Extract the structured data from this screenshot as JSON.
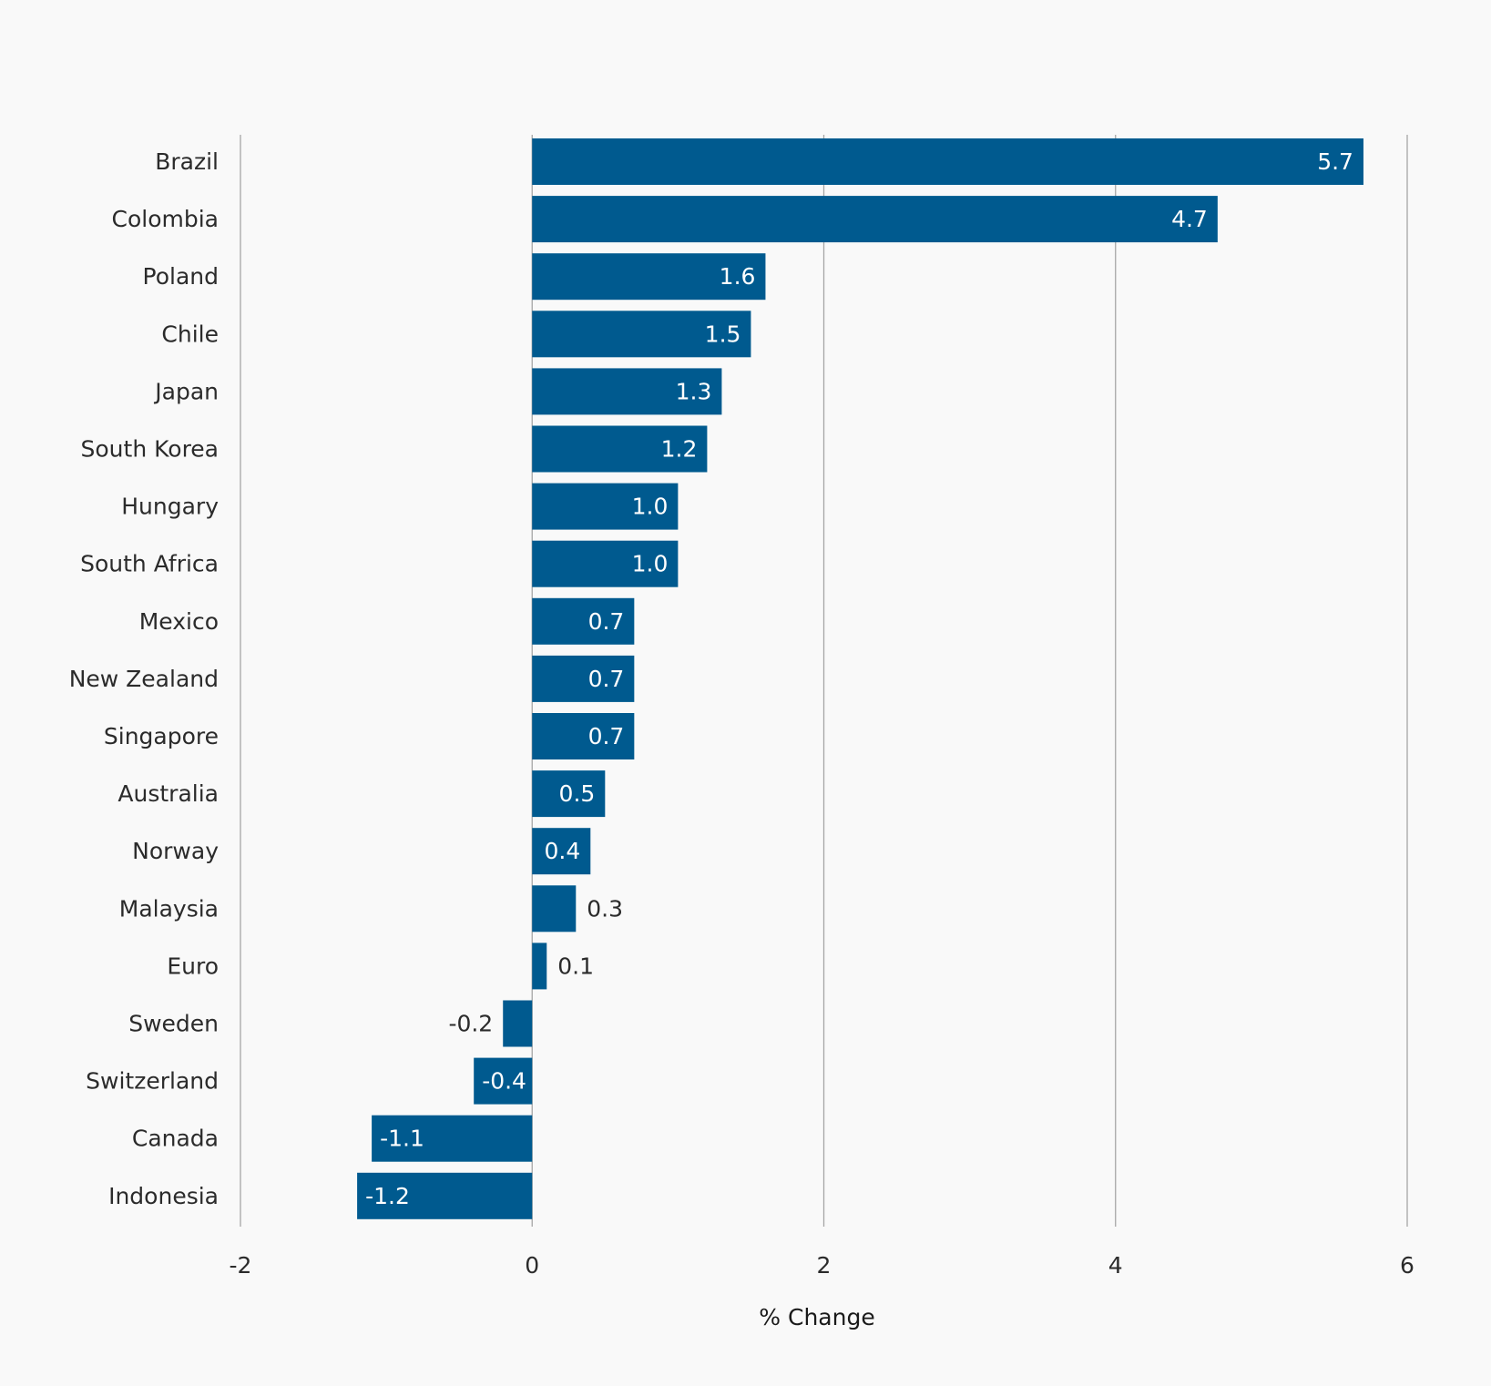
{
  "chart_data": {
    "type": "bar",
    "orientation": "horizontal",
    "categories": [
      "Brazil",
      "Colombia",
      "Poland",
      "Chile",
      "Japan",
      "South Korea",
      "Hungary",
      "South Africa",
      "Mexico",
      "New Zealand",
      "Singapore",
      "Australia",
      "Norway",
      "Malaysia",
      "Euro",
      "Sweden",
      "Switzerland",
      "Canada",
      "Indonesia"
    ],
    "values": [
      5.7,
      4.7,
      1.6,
      1.5,
      1.3,
      1.2,
      1.0,
      1.0,
      0.7,
      0.7,
      0.7,
      0.5,
      0.4,
      0.3,
      0.1,
      -0.2,
      -0.4,
      -1.1,
      -1.2
    ],
    "value_labels": [
      "5.7",
      "4.7",
      "1.6",
      "1.5",
      "1.3",
      "1.2",
      "1.0",
      "1.0",
      "0.7",
      "0.7",
      "0.7",
      "0.5",
      "0.4",
      "0.3",
      "0.1",
      "-0.2",
      "-0.4",
      "-1.1",
      "-1.2"
    ],
    "title": "",
    "xlabel": "% Change",
    "ylabel": "",
    "xlim": [
      -2,
      6
    ],
    "xticks": [
      -2,
      0,
      2,
      4,
      6
    ],
    "xtick_labels": [
      "-2",
      "0",
      "2",
      "4",
      "6"
    ],
    "grid": "vertical",
    "legend": "none",
    "colors": {
      "bar": "#005a8f",
      "grid": "#a6a6a6",
      "label_inside": "#ffffff",
      "label_outside": "#2b2b2b",
      "background": "#f9f9f9"
    }
  }
}
